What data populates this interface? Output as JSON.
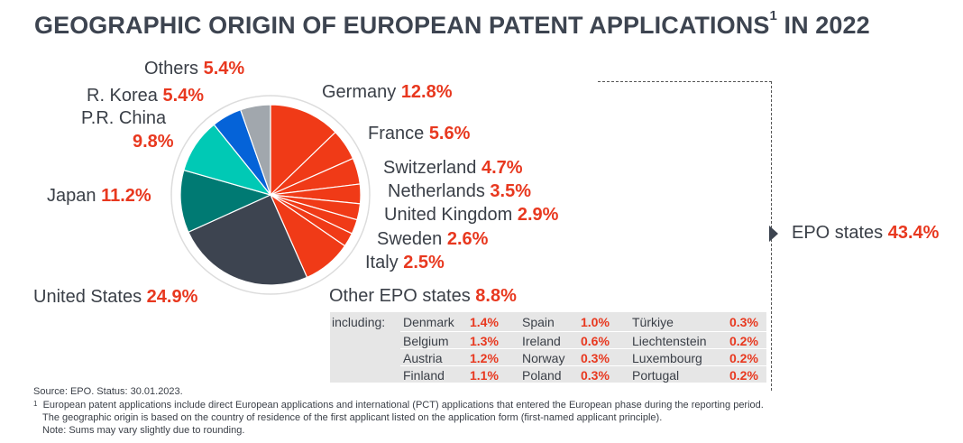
{
  "title": "GEOGRAPHIC ORIGIN OF EUROPEAN PATENT APPLICATIONS",
  "title_sup": "1",
  "title_suffix": " IN 2022",
  "chart_data": {
    "type": "pie",
    "title": "GEOGRAPHIC ORIGIN OF EUROPEAN PATENT APPLICATIONS IN 2022",
    "unit": "%",
    "slices": [
      {
        "label": "Germany",
        "value": 12.8,
        "display": "12.8%",
        "color": "#f03a17"
      },
      {
        "label": "France",
        "value": 5.6,
        "display": "5.6%",
        "color": "#f03a17"
      },
      {
        "label": "Switzerland",
        "value": 4.7,
        "display": "4.7%",
        "color": "#f03a17"
      },
      {
        "label": "Netherlands",
        "value": 3.5,
        "display": "3.5%",
        "color": "#f03a17"
      },
      {
        "label": "United Kingdom",
        "value": 2.9,
        "display": "2.9%",
        "color": "#f03a17"
      },
      {
        "label": "Sweden",
        "value": 2.6,
        "display": "2.6%",
        "color": "#f03a17"
      },
      {
        "label": "Italy",
        "value": 2.5,
        "display": "2.5%",
        "color": "#f03a17"
      },
      {
        "label": "Other EPO states",
        "value": 8.8,
        "display": "8.8%",
        "color": "#f03a17"
      },
      {
        "label": "United States",
        "value": 24.9,
        "display": "24.9%",
        "color": "#3d4450"
      },
      {
        "label": "Japan",
        "value": 11.2,
        "display": "11.2%",
        "color": "#007a73"
      },
      {
        "label": "P.R. China",
        "value": 9.8,
        "display": "9.8%",
        "color": "#00c9b5"
      },
      {
        "label": "R. Korea",
        "value": 5.4,
        "display": "5.4%",
        "color": "#0563d8"
      },
      {
        "label": "Others",
        "value": 5.4,
        "display": "5.4%",
        "color": "#a1a7ad"
      }
    ],
    "group_total": {
      "label": "EPO states",
      "value": 43.4,
      "display": "43.4%"
    },
    "other_epo_breakdown_label": "including:",
    "other_epo_breakdown": [
      {
        "country": "Denmark",
        "value": "1.4%"
      },
      {
        "country": "Belgium",
        "value": "1.3%"
      },
      {
        "country": "Austria",
        "value": "1.2%"
      },
      {
        "country": "Finland",
        "value": "1.1%"
      },
      {
        "country": "Spain",
        "value": "1.0%"
      },
      {
        "country": "Ireland",
        "value": "0.6%"
      },
      {
        "country": "Norway",
        "value": "0.3%"
      },
      {
        "country": "Poland",
        "value": "0.3%"
      },
      {
        "country": "Türkiye",
        "value": "0.3%"
      },
      {
        "country": "Liechtenstein",
        "value": "0.2%"
      },
      {
        "country": "Luxembourg",
        "value": "0.2%"
      },
      {
        "country": "Portugal",
        "value": "0.2%"
      }
    ]
  },
  "footnotes": {
    "source": "Source: EPO. Status: 30.01.2023.",
    "note_marker": "1",
    "note_line1": "European patent applications include direct European applications and international (PCT) applications that entered the European phase during the reporting period.",
    "note_line2": "The geographic origin is based on the country of residence of the first applicant listed on the application form (first-named applicant principle).",
    "note_line3": "Note: Sums may vary slightly due to rounding."
  }
}
